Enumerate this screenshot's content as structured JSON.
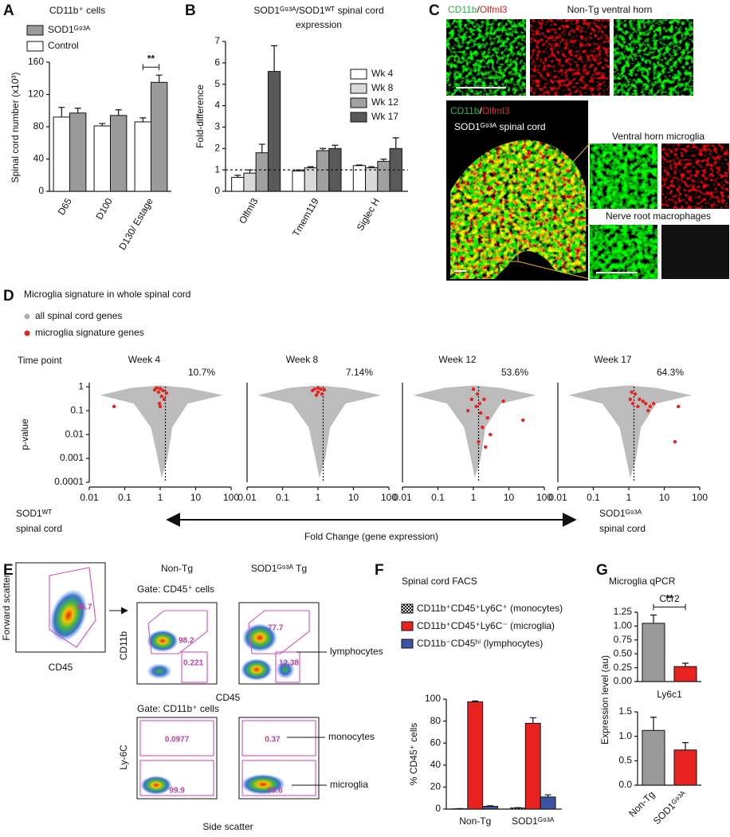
{
  "panel_labels": [
    "A",
    "B",
    "C",
    "D",
    "E",
    "F",
    "G"
  ],
  "chart_data": [
    {
      "type": "bar",
      "title": "CD11b⁺ cells",
      "y_label": "Spinal cord number (x10³)",
      "categories": [
        "D65",
        "D100",
        "D130/ Estage"
      ],
      "series": [
        {
          "name": "Control",
          "color": "#ffffff",
          "values": [
            92,
            81,
            86
          ],
          "errors": [
            12,
            3,
            5
          ]
        },
        {
          "name": "SOD1ᴳ⁹³ᴬ",
          "color": "#9a9a9a",
          "values": [
            97,
            94,
            135
          ],
          "errors": [
            6,
            7,
            9
          ]
        }
      ],
      "legend_reverse": true,
      "ylim": [
        0,
        160
      ],
      "yticks": [
        0,
        40,
        80,
        120,
        160
      ],
      "significance": {
        "label": "**",
        "category": "D130/ Estage"
      }
    },
    {
      "type": "bar",
      "title": [
        "SOD1ᴳ⁹³ᴬ/SOD1ᵂᵀ spinal cord",
        "expression"
      ],
      "y_label": "Fold-difference",
      "categories": [
        "Olfml3",
        "Tmem119",
        "Siglec H"
      ],
      "series": [
        {
          "name": "Wk 4",
          "color": "#ffffff",
          "values": [
            0.65,
            0.95,
            1.2
          ],
          "errors": [
            0.1,
            0.05,
            0.03
          ]
        },
        {
          "name": "Wk 8",
          "color": "#d9d9d9",
          "values": [
            0.85,
            1.1,
            1.1
          ],
          "errors": [
            0.15,
            0.05,
            0.05
          ]
        },
        {
          "name": "Wk 12",
          "color": "#a0a0a0",
          "values": [
            1.8,
            1.9,
            1.4
          ],
          "errors": [
            0.4,
            0.1,
            0.1
          ]
        },
        {
          "name": "Wk 17",
          "color": "#595959",
          "values": [
            5.6,
            2.0,
            2.0
          ],
          "errors": [
            1.2,
            0.15,
            0.5
          ]
        }
      ],
      "ylim": [
        0,
        7
      ],
      "yticks": [
        0,
        1,
        2,
        3,
        4,
        5,
        6,
        7
      ],
      "reference_line": 1
    },
    {
      "type": "bar",
      "title": "Spinal cord FACS",
      "y_label": "% CD45⁺ cells",
      "categories": [
        "Non-Tg",
        "SOD1ᴳ⁹³ᴬ"
      ],
      "series": [
        {
          "name": "CD11b⁺CD45⁺Ly6C⁺ (monocytes)",
          "color": "#000000",
          "pattern": "checkered",
          "values": [
            0.3,
            1
          ],
          "errors": [
            0.2,
            0.3
          ]
        },
        {
          "name": "CD11b⁺CD45⁺Ly6C⁻ (microglia)",
          "color": "#e8231f",
          "values": [
            97.5,
            78
          ],
          "errors": [
            0.8,
            5
          ]
        },
        {
          "name": "CD11b⁻CD45ʰⁱ (lymphocytes)",
          "color": "#3b55a5",
          "values": [
            2.5,
            11
          ],
          "errors": [
            0.5,
            2
          ]
        }
      ],
      "ylim": [
        0,
        100
      ],
      "yticks": [
        0,
        20,
        40,
        60,
        80,
        100
      ]
    },
    {
      "type": "bar",
      "title": "Ccr2",
      "values": [
        1.05,
        0.27
      ],
      "errors": [
        0.15,
        0.06
      ],
      "colors": [
        "#9a9a9a",
        "#e8231f"
      ],
      "ylim": [
        0,
        1.25
      ],
      "yticks": [
        {
          "value": 0,
          "label": "0.00"
        },
        {
          "value": 0.25,
          "label": "0.25"
        },
        {
          "value": 0.5,
          "label": "0.50"
        },
        {
          "value": 0.75,
          "label": "0.75"
        },
        {
          "value": 1,
          "label": "1.00"
        },
        {
          "value": 1.25,
          "label": "1.25"
        }
      ],
      "significance": {
        "label": "**"
      }
    },
    {
      "type": "bar",
      "title": "Ly6c1",
      "categories": [
        "Non-Tg",
        "SOD1ᴳ⁹³ᴬ"
      ],
      "values": [
        1.12,
        0.72
      ],
      "errors": [
        0.27,
        0.15
      ],
      "colors": [
        "#9a9a9a",
        "#e8231f"
      ],
      "ylim": [
        0,
        1.5
      ],
      "yticks": [
        {
          "value": 0,
          "label": "0.0"
        },
        {
          "value": 0.5,
          "label": "0.5"
        },
        {
          "value": 1,
          "label": "1.0"
        },
        {
          "value": 1.5,
          "label": "1.5"
        }
      ]
    },
    {
      "type": "scatter",
      "title": "Week 4",
      "percent_label": "10.7%",
      "log_x": true,
      "log_y": true,
      "xlim": [
        0.01,
        100
      ],
      "ylim": [
        0.0001,
        1.5
      ],
      "xticks": [
        0.01,
        0.1,
        1,
        10,
        100
      ],
      "yticks": [
        1,
        0.1,
        0.01,
        0.001,
        0.0001
      ],
      "reference_line": 1.4,
      "series": [
        {
          "name": "microglia signature genes",
          "color": "#e8231f",
          "x": [
            0.8,
            1,
            1.2,
            0.9,
            1.5,
            0.7,
            1.1,
            1.3,
            0.95,
            1,
            0.05
          ],
          "values": [
            0.9,
            0.85,
            0.7,
            0.6,
            0.55,
            0.75,
            0.4,
            0.3,
            0.2,
            0.15,
            0.15
          ]
        }
      ]
    },
    {
      "type": "scatter",
      "title": "Week 8",
      "percent_label": "7.14%",
      "log_x": true,
      "log_y": true,
      "xlim": [
        0.01,
        100
      ],
      "ylim": [
        0.0001,
        1.5
      ],
      "xticks": [
        0.01,
        0.1,
        1,
        10,
        100
      ],
      "reference_line": 1.4,
      "series": [
        {
          "name": "microglia signature genes",
          "color": "#e8231f",
          "x": [
            1,
            0.8,
            1.2,
            1.5,
            0.7,
            1,
            1.3,
            0.9
          ],
          "values": [
            0.9,
            0.8,
            0.8,
            0.75,
            0.7,
            0.6,
            0.5,
            0.45
          ]
        }
      ]
    },
    {
      "type": "scatter",
      "title": "Week 12",
      "percent_label": "53.6%",
      "log_x": true,
      "log_y": true,
      "xlim": [
        0.01,
        100
      ],
      "ylim": [
        0.0001,
        1.5
      ],
      "xticks": [
        0.01,
        0.1,
        1,
        10,
        100
      ],
      "reference_line": 1.4,
      "series": [
        {
          "name": "microglia signature genes",
          "color": "#e8231f",
          "x": [
            1,
            1.3,
            0.9,
            1.5,
            1.2,
            2,
            0.7,
            1.6,
            2.5,
            1.8,
            3,
            1.4,
            2.2,
            25,
            7
          ],
          "values": [
            0.8,
            0.5,
            0.3,
            0.2,
            0.15,
            0.3,
            0.1,
            0.08,
            0.05,
            0.02,
            0.01,
            0.005,
            0.003,
            0.04,
            0.25
          ]
        }
      ]
    },
    {
      "type": "scatter",
      "title": "Week 17",
      "percent_label": "64.3%",
      "log_x": true,
      "log_y": true,
      "xlim": [
        0.01,
        100
      ],
      "ylim": [
        0.0001,
        1.5
      ],
      "xticks": [
        0.01,
        0.1,
        1,
        10,
        100
      ],
      "reference_line": 1.4,
      "series": [
        {
          "name": "microglia signature genes",
          "color": "#e8231f",
          "x": [
            1.2,
            1.5,
            2,
            2.5,
            3,
            1.8,
            4,
            5,
            3.5,
            1.3,
            20,
            25,
            1.1
          ],
          "values": [
            0.6,
            0.5,
            0.3,
            0.25,
            0.2,
            0.15,
            0.15,
            0.2,
            0.1,
            0.2,
            0.005,
            0.15,
            0.3
          ]
        }
      ]
    }
  ],
  "panel_c": {
    "marker_green": "CD11b",
    "slash": "/",
    "marker_red": "Olfml3",
    "top_title": "Non-Tg ventral horn",
    "bottom_title": "SOD1ᴳ⁹³ᴬ spinal cord",
    "inset_top": "Ventral horn microglia",
    "inset_bottom": "Nerve root macrophages"
  },
  "panel_d": {
    "title": "Microglia signature in whole spinal cord",
    "legend": [
      {
        "name": "all spinal cord genes",
        "color": "#b0b0b0"
      },
      {
        "name": "microglia signature genes",
        "color": "#e8231f"
      }
    ],
    "row_label": "Time point",
    "y_label": "p-value",
    "left_label": [
      "SOD1ᵂᵀ",
      "spinal cord"
    ],
    "x_label": "Fold Change (gene expression)",
    "right_label": [
      "SOD1ᴳ⁹³ᴬ",
      "spinal cord"
    ]
  },
  "panel_e": {
    "columns": [
      "Non-Tg",
      "SOD1ᴳ⁹³ᴬ Tg"
    ],
    "gate_top": "Gate: CD45⁺ cells",
    "gate_bottom": "Gate: CD11b⁺ cells",
    "first_x": "CD45",
    "first_y": "Forward scatter",
    "first_gate": "96.7",
    "top_y": "CD11b",
    "top_x": "CD45",
    "top_gates": [
      [
        "98.2",
        "0.221"
      ],
      [
        "77.7",
        "12.38"
      ]
    ],
    "bottom_y": "Ly-6C",
    "bottom_x": "Side scatter",
    "bottom_gates": [
      [
        "0.0977",
        "99.9"
      ],
      [
        "0.37",
        "99.6"
      ]
    ],
    "populations": [
      "lymphocytes",
      "monocytes",
      "microglia"
    ]
  },
  "panel_g": {
    "title": "Microglia qPCR",
    "y_label": "Expression level (au)"
  }
}
